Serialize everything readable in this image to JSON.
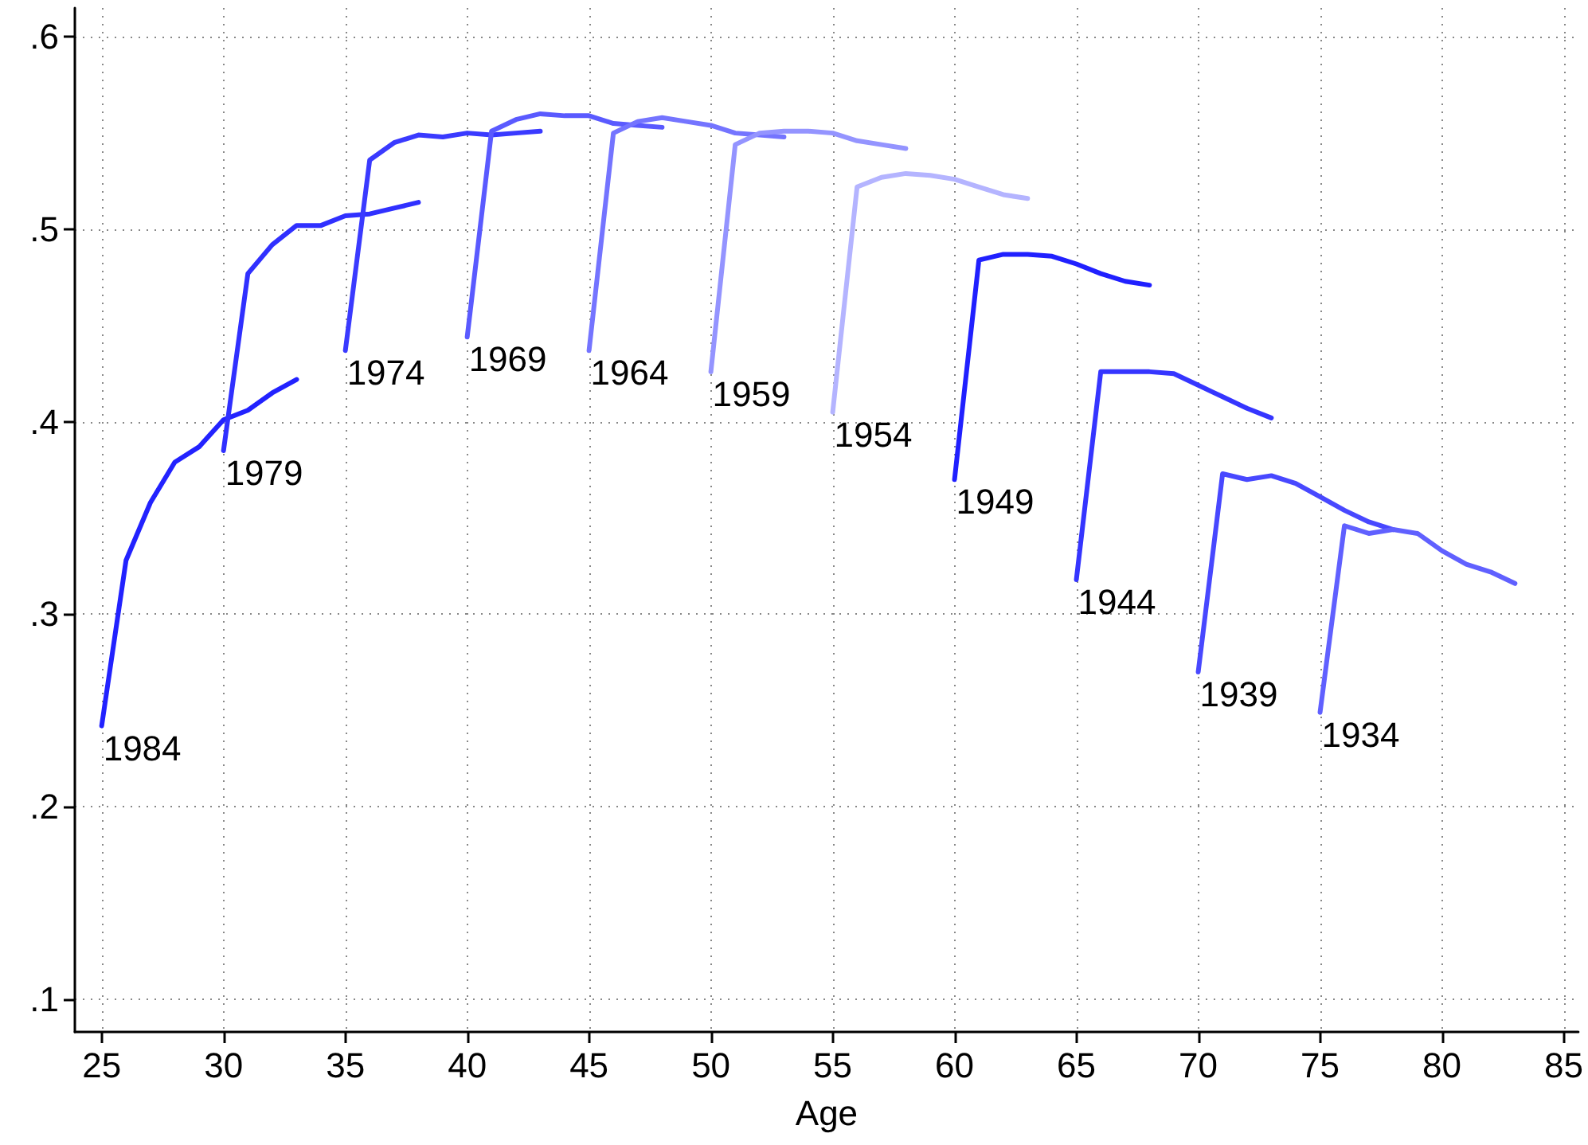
{
  "chart_data": {
    "type": "line",
    "xlabel": "Age",
    "grid": true,
    "legend": false,
    "xlim": [
      23.9,
      85.6
    ],
    "xticks": [
      25,
      30,
      35,
      40,
      45,
      50,
      55,
      60,
      65,
      70,
      75,
      80,
      85
    ],
    "ylim": [
      0.083,
      0.615
    ],
    "yticks": [
      {
        "value": 0.1,
        "label": ".1"
      },
      {
        "value": 0.2,
        "label": ".2"
      },
      {
        "value": 0.3,
        "label": ".3"
      },
      {
        "value": 0.4,
        "label": ".4"
      },
      {
        "value": 0.5,
        "label": ".5"
      },
      {
        "value": 0.6,
        "label": ".6"
      }
    ],
    "series": [
      {
        "name": "1984",
        "color": "#2222ff",
        "x": [
          25,
          26,
          27,
          28,
          29,
          30,
          31,
          32,
          33
        ],
        "values": [
          0.242,
          0.328,
          0.358,
          0.379,
          0.387,
          0.401,
          0.406,
          0.415,
          0.422
        ]
      },
      {
        "name": "1979",
        "color": "#3030ff",
        "x": [
          30,
          31,
          32,
          33,
          34,
          35,
          36,
          37,
          38
        ],
        "values": [
          0.385,
          0.477,
          0.492,
          0.502,
          0.502,
          0.507,
          0.508,
          0.511,
          0.514
        ]
      },
      {
        "name": "1974",
        "color": "#3a3aff",
        "x": [
          35,
          36,
          37,
          38,
          39,
          40,
          41,
          42,
          43
        ],
        "values": [
          0.437,
          0.536,
          0.545,
          0.549,
          0.548,
          0.55,
          0.549,
          0.55,
          0.551
        ]
      },
      {
        "name": "1969",
        "color": "#5a5aff",
        "x": [
          40,
          41,
          42,
          43,
          44,
          45,
          46,
          47,
          48
        ],
        "values": [
          0.444,
          0.551,
          0.557,
          0.56,
          0.559,
          0.559,
          0.555,
          0.554,
          0.553
        ]
      },
      {
        "name": "1964",
        "color": "#7474ff",
        "x": [
          45,
          46,
          47,
          48,
          49,
          50,
          51,
          52,
          53
        ],
        "values": [
          0.437,
          0.55,
          0.556,
          0.558,
          0.556,
          0.554,
          0.55,
          0.549,
          0.548
        ]
      },
      {
        "name": "1959",
        "color": "#9494ff",
        "x": [
          50,
          51,
          52,
          53,
          54,
          55,
          56,
          57,
          58
        ],
        "values": [
          0.426,
          0.544,
          0.55,
          0.551,
          0.551,
          0.55,
          0.546,
          0.544,
          0.542
        ]
      },
      {
        "name": "1954",
        "color": "#b4b4ff",
        "x": [
          55,
          56,
          57,
          58,
          59,
          60,
          61,
          62,
          63
        ],
        "values": [
          0.405,
          0.522,
          0.527,
          0.529,
          0.528,
          0.526,
          0.522,
          0.518,
          0.516
        ]
      },
      {
        "name": "1949",
        "color": "#2020ff",
        "x": [
          60,
          61,
          62,
          63,
          64,
          65,
          66,
          67,
          68
        ],
        "values": [
          0.37,
          0.484,
          0.487,
          0.487,
          0.486,
          0.482,
          0.477,
          0.473,
          0.471
        ]
      },
      {
        "name": "1944",
        "color": "#3535ff",
        "x": [
          65,
          66,
          67,
          68,
          69,
          70,
          71,
          72,
          73
        ],
        "values": [
          0.318,
          0.426,
          0.426,
          0.426,
          0.425,
          0.419,
          0.413,
          0.407,
          0.402
        ]
      },
      {
        "name": "1939",
        "color": "#4848ff",
        "x": [
          70,
          71,
          72,
          73,
          74,
          75,
          76,
          77,
          78
        ],
        "values": [
          0.27,
          0.373,
          0.37,
          0.372,
          0.368,
          0.361,
          0.354,
          0.348,
          0.344
        ]
      },
      {
        "name": "1934",
        "color": "#6060ff",
        "x": [
          75,
          76,
          77,
          78,
          79,
          80,
          81,
          82,
          83
        ],
        "values": [
          0.249,
          0.346,
          0.342,
          0.344,
          0.342,
          0.333,
          0.326,
          0.322,
          0.316
        ]
      }
    ]
  }
}
